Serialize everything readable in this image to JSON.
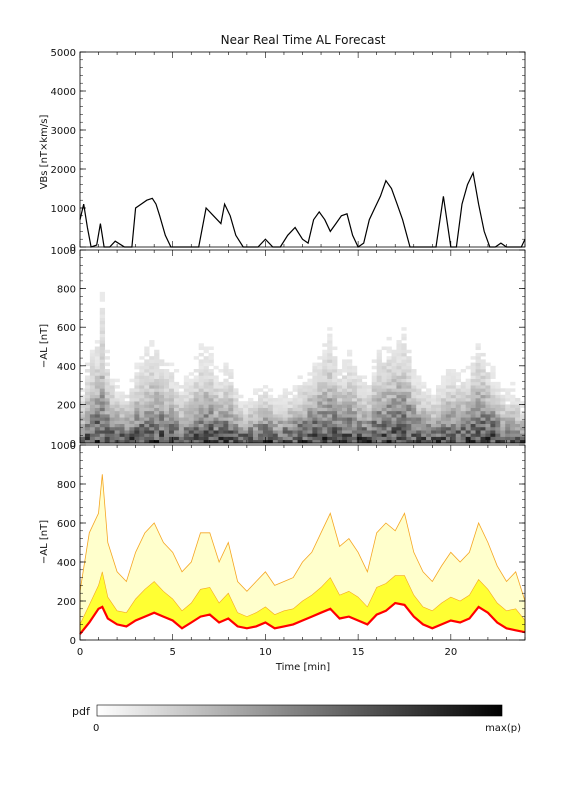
{
  "title": "Near Real Time AL Forecast",
  "colors": {
    "line": "#000000",
    "band_outer": "#f5a623",
    "band_fill": "#ffff33",
    "median": "#ff0000"
  },
  "chart_data": [
    {
      "type": "line",
      "ylabel": "VBs [nT×km/s]",
      "ylim": [
        0,
        5000
      ],
      "yticks": [
        "0",
        "1000",
        "2000",
        "3000",
        "4000",
        "5000"
      ],
      "xlim": [
        0,
        24
      ],
      "x": [
        0,
        0.2,
        0.4,
        0.6,
        0.9,
        1.1,
        1.3,
        1.6,
        1.9,
        2.4,
        2.8,
        3.0,
        3.3,
        3.6,
        3.9,
        4.1,
        4.3,
        4.6,
        4.9,
        5.2,
        5.6,
        6.0,
        6.4,
        6.8,
        7.2,
        7.6,
        7.8,
        8.1,
        8.4,
        8.8,
        9.2,
        9.6,
        10.0,
        10.4,
        10.8,
        11.2,
        11.6,
        12.0,
        12.3,
        12.6,
        12.9,
        13.2,
        13.5,
        13.8,
        14.1,
        14.4,
        14.7,
        15.0,
        15.3,
        15.6,
        15.9,
        16.2,
        16.5,
        16.8,
        17.1,
        17.4,
        17.8,
        18.2,
        18.6,
        18.9,
        19.2,
        19.6,
        20.0,
        20.3,
        20.6,
        20.9,
        21.2,
        21.5,
        21.8,
        22.1,
        22.4,
        22.7,
        23.0,
        23.4,
        23.8,
        24.0
      ],
      "values": [
        700,
        1100,
        500,
        0,
        50,
        600,
        0,
        0,
        150,
        0,
        0,
        1000,
        1100,
        1200,
        1250,
        1100,
        800,
        300,
        0,
        0,
        0,
        0,
        0,
        1000,
        800,
        600,
        1100,
        800,
        300,
        0,
        0,
        0,
        200,
        0,
        0,
        300,
        500,
        200,
        100,
        700,
        900,
        700,
        400,
        600,
        800,
        850,
        300,
        0,
        100,
        700,
        1000,
        1300,
        1700,
        1500,
        1100,
        700,
        0,
        0,
        0,
        0,
        0,
        1300,
        0,
        0,
        1100,
        1600,
        1900,
        1100,
        400,
        0,
        0,
        100,
        0,
        0,
        0,
        200
      ]
    },
    {
      "type": "heatmap",
      "ylabel": "−AL [nT]",
      "ylim": [
        0,
        1000
      ],
      "yticks": [
        "0",
        "200",
        "400",
        "600",
        "800",
        "1000"
      ],
      "xlim": [
        0,
        24
      ],
      "colorbar": {
        "label": "pdf",
        "min_label": "0",
        "max_label": "max(p)"
      }
    },
    {
      "type": "area",
      "ylabel": "−AL [nT]",
      "xlabel": "Time [min]",
      "ylim": [
        0,
        1000
      ],
      "yticks": [
        "0",
        "200",
        "400",
        "600",
        "800",
        "1000"
      ],
      "xlim": [
        0,
        24
      ],
      "xticks": [
        "0",
        "5",
        "10",
        "15",
        "20"
      ],
      "x": [
        0,
        0.5,
        1.0,
        1.2,
        1.5,
        2.0,
        2.5,
        3.0,
        3.5,
        4.0,
        4.5,
        5.0,
        5.5,
        6.0,
        6.5,
        7.0,
        7.5,
        8.0,
        8.5,
        9.0,
        9.5,
        10.0,
        10.5,
        11.0,
        11.5,
        12.0,
        12.5,
        13.0,
        13.5,
        14.0,
        14.5,
        15.0,
        15.5,
        16.0,
        16.5,
        17.0,
        17.5,
        18.0,
        18.5,
        19.0,
        19.5,
        20.0,
        20.5,
        21.0,
        21.5,
        22.0,
        22.5,
        23.0,
        23.5,
        24.0
      ],
      "series": [
        {
          "name": "",
          "values": [
            250,
            550,
            650,
            850,
            500,
            350,
            300,
            450,
            550,
            600,
            500,
            450,
            350,
            400,
            550,
            550,
            400,
            500,
            300,
            250,
            300,
            350,
            280,
            300,
            320,
            400,
            450,
            550,
            650,
            480,
            520,
            450,
            350,
            550,
            600,
            560,
            650,
            450,
            350,
            300,
            380,
            450,
            400,
            450,
            600,
            500,
            380,
            300,
            350,
            200
          ]
        },
        {
          "name": "",
          "values": [
            80,
            180,
            280,
            350,
            220,
            150,
            140,
            210,
            260,
            300,
            250,
            210,
            150,
            190,
            260,
            270,
            190,
            240,
            140,
            120,
            140,
            170,
            130,
            150,
            160,
            200,
            230,
            270,
            320,
            230,
            250,
            220,
            170,
            270,
            290,
            330,
            330,
            230,
            170,
            150,
            190,
            220,
            200,
            230,
            310,
            260,
            190,
            150,
            160,
            100
          ]
        },
        {
          "name": "",
          "values": [
            30,
            90,
            160,
            170,
            110,
            80,
            70,
            100,
            120,
            140,
            120,
            100,
            60,
            90,
            120,
            130,
            90,
            110,
            70,
            60,
            70,
            90,
            60,
            70,
            80,
            100,
            120,
            140,
            160,
            110,
            120,
            100,
            80,
            130,
            150,
            190,
            180,
            120,
            80,
            60,
            80,
            100,
            90,
            110,
            170,
            140,
            90,
            60,
            50,
            40
          ]
        }
      ]
    }
  ]
}
